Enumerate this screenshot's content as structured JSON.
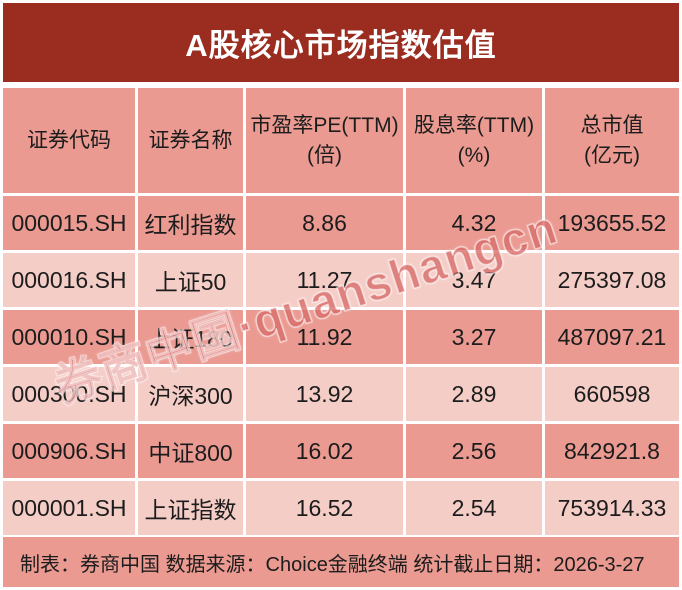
{
  "title": "A股核心市场指数估值",
  "footer_text": "制表：券商中国 数据来源：Choice金融终端 统计截止日期：2026-3-27",
  "watermark_text": "券商中国·quanshangcn",
  "colors": {
    "banner_red": "#9A2D20",
    "row_dark_pink": "#EA9A91",
    "row_light_pink": "#F5CDC7",
    "watermark_red": "#C62C28",
    "text_dark": "#1c1c1c",
    "title_white": "#FFFFFF"
  },
  "chart_data": {
    "type": "table",
    "title": "A股核心市场指数估值",
    "columns": [
      {
        "line1": "证券代码",
        "line2": ""
      },
      {
        "line1": "证券名称",
        "line2": ""
      },
      {
        "line1": "市盈率PE(TTM)",
        "line2": "(倍)"
      },
      {
        "line1": "股息率(TTM)",
        "line2": "(%)"
      },
      {
        "line1": "总市值",
        "line2": "(亿元)"
      }
    ],
    "rows": [
      {
        "code": "000015.SH",
        "name": "红利指数",
        "pe": "8.86",
        "dy": "4.32",
        "cap": "193655.52"
      },
      {
        "code": "000016.SH",
        "name": "上证50",
        "pe": "11.27",
        "dy": "3.47",
        "cap": "275397.08"
      },
      {
        "code": "000010.SH",
        "name": "上证180",
        "pe": "11.92",
        "dy": "3.27",
        "cap": "487097.21"
      },
      {
        "code": "000300.SH",
        "name": "沪深300",
        "pe": "13.92",
        "dy": "2.89",
        "cap": "660598"
      },
      {
        "code": "000906.SH",
        "name": "中证800",
        "pe": "16.02",
        "dy": "2.56",
        "cap": "842921.8"
      },
      {
        "code": "000001.SH",
        "name": "上证指数",
        "pe": "16.52",
        "dy": "2.54",
        "cap": "753914.33"
      }
    ]
  }
}
